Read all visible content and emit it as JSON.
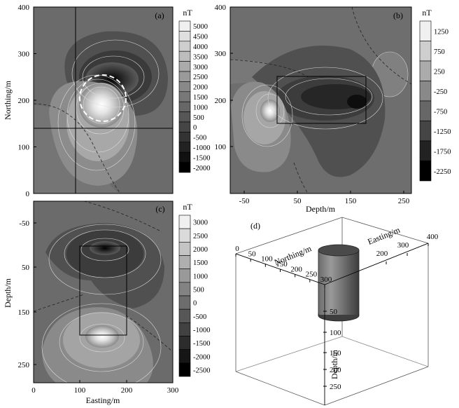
{
  "panels": {
    "a": {
      "label": "(a)",
      "ylabel": "Northing/m",
      "yticks": [
        "400",
        "300",
        "200",
        "100",
        "0"
      ],
      "unit": "nT",
      "colorbar": [
        "5000",
        "4500",
        "4000",
        "3500",
        "3000",
        "2500",
        "2000",
        "1500",
        "1000",
        "500",
        "0",
        "-500",
        "-1000",
        "-1500",
        "-2000"
      ]
    },
    "b": {
      "label": "(b)",
      "xlabel": "Depth/m",
      "xticks": [
        "-50",
        "50",
        "150",
        "250"
      ],
      "yticks": [
        "400",
        "300",
        "200",
        "100"
      ],
      "unit": "nT",
      "colorbar": [
        "1250",
        "750",
        "250",
        "-250",
        "-750",
        "-1250",
        "-1750",
        "-2250"
      ]
    },
    "c": {
      "label": "(c)",
      "xlabel": "Easting/m",
      "ylabel": "Depth/m",
      "xticks": [
        "0",
        "100",
        "200",
        "300"
      ],
      "yticks": [
        "-50",
        "50",
        "150",
        "250"
      ],
      "unit": "nT",
      "colorbar": [
        "3000",
        "2500",
        "2000",
        "1500",
        "1000",
        "500",
        "0",
        "-500",
        "-1000",
        "-1500",
        "-2000",
        "-2500"
      ]
    },
    "d": {
      "label": "(d)",
      "northing_label": "Northing/m",
      "easting_label": "Easting/m",
      "depth_label": "Depth/m",
      "northing_ticks": [
        "0",
        "50",
        "100",
        "150",
        "200",
        "250",
        "300"
      ],
      "easting_ticks": [
        "200",
        "300",
        "400"
      ],
      "depth_ticks": [
        "50",
        "100",
        "150",
        "200",
        "250"
      ]
    }
  }
}
